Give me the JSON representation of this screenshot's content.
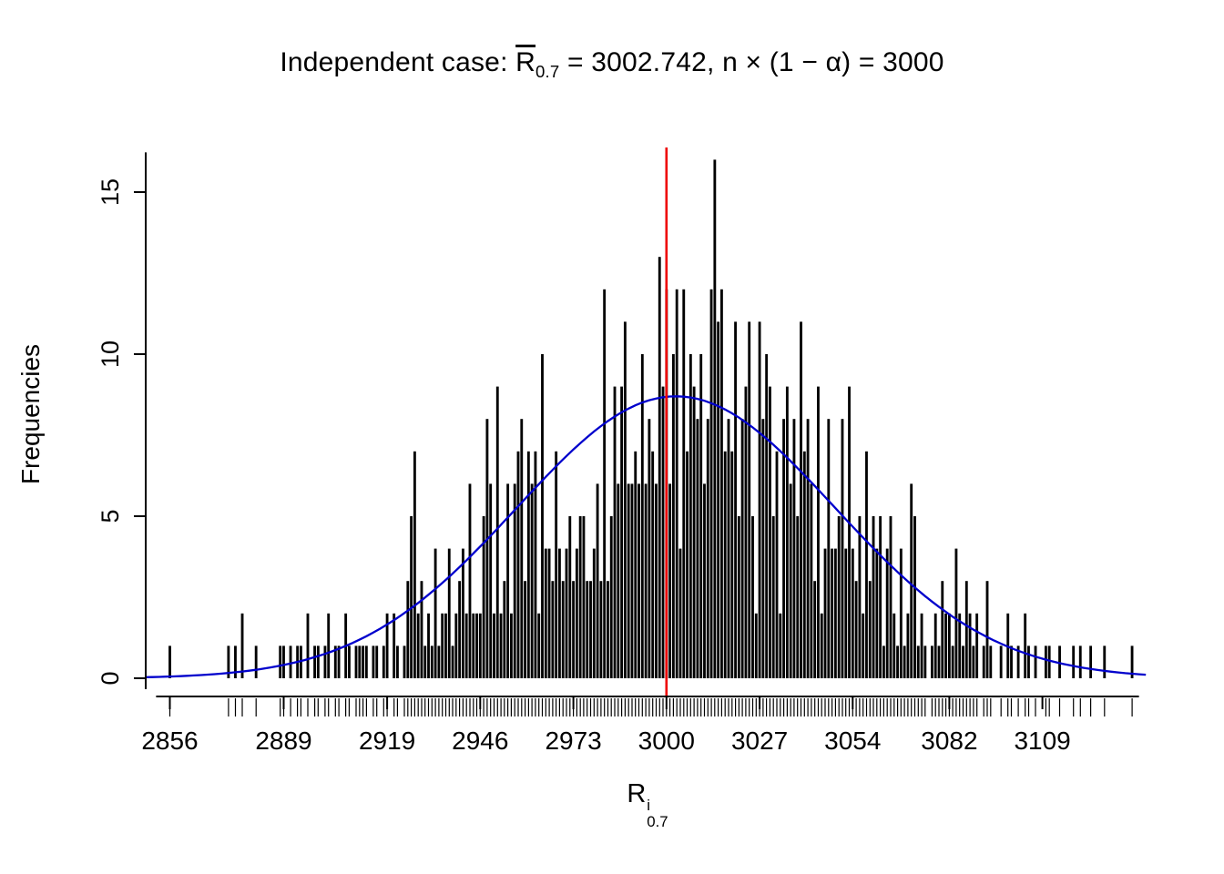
{
  "title": {
    "prefix": "Independent case: ",
    "rbar_base": "R",
    "rbar_sub": "0.7",
    "equals_mean": " = 3002.742,  ",
    "n_expr": "n × (1 − α) = 3000"
  },
  "ylabel": "Frequencies",
  "xlabel": {
    "base": "R",
    "sup": "i",
    "sub": "0.7"
  },
  "chart_data": {
    "type": "bar",
    "subtype": "histogram-with-density-curve",
    "title": "Independent case: R̄0.7 = 3002.742, n × (1 − α) = 3000",
    "xlabel": "R^i_0.7",
    "ylabel": "Frequencies",
    "bin_start": 2856,
    "bin_width": 1,
    "counts": [
      1,
      0,
      0,
      0,
      0,
      0,
      0,
      0,
      0,
      0,
      0,
      0,
      0,
      0,
      0,
      0,
      0,
      1,
      0,
      1,
      0,
      2,
      0,
      0,
      0,
      1,
      0,
      0,
      0,
      0,
      0,
      0,
      1,
      1,
      0,
      1,
      0,
      1,
      1,
      0,
      2,
      0,
      1,
      1,
      0,
      1,
      2,
      0,
      1,
      1,
      0,
      2,
      1,
      0,
      1,
      1,
      1,
      1,
      0,
      1,
      1,
      0,
      1,
      2,
      0,
      2,
      1,
      0,
      1,
      3,
      5,
      7,
      2,
      3,
      1,
      2,
      1,
      4,
      1,
      2,
      2,
      4,
      1,
      2,
      3,
      4,
      2,
      6,
      2,
      2,
      2,
      5,
      8,
      6,
      2,
      9,
      2,
      3,
      6,
      2,
      6,
      7,
      8,
      3,
      7,
      6,
      7,
      2,
      10,
      4,
      4,
      3,
      7,
      4,
      3,
      4,
      5,
      3,
      4,
      5,
      5,
      3,
      3,
      4,
      6,
      3,
      12,
      3,
      5,
      9,
      6,
      9,
      11,
      6,
      6,
      7,
      6,
      10,
      6,
      8,
      7,
      6,
      13,
      9,
      12,
      6,
      10,
      12,
      4,
      12,
      7,
      10,
      9,
      8,
      10,
      6,
      8,
      12,
      16,
      11,
      12,
      7,
      8,
      7,
      11,
      5,
      8,
      9,
      11,
      5,
      2,
      11,
      8,
      10,
      9,
      5,
      7,
      2,
      8,
      9,
      6,
      8,
      5,
      11,
      7,
      8,
      6,
      3,
      9,
      2,
      4,
      8,
      4,
      4,
      5,
      8,
      4,
      9,
      4,
      3,
      5,
      2,
      7,
      3,
      5,
      4,
      5,
      1,
      4,
      5,
      2,
      1,
      4,
      1,
      2,
      6,
      5,
      1,
      2,
      1,
      0,
      1,
      2,
      1,
      3,
      2,
      2,
      1,
      4,
      2,
      1,
      3,
      2,
      1,
      2,
      0,
      1,
      3,
      1,
      0,
      0,
      1,
      0,
      2,
      1,
      0,
      1,
      0,
      2,
      1,
      0,
      1,
      0,
      0,
      1,
      1,
      0,
      0,
      1,
      0,
      0,
      0,
      1,
      0,
      1,
      0,
      0,
      1,
      0,
      0,
      0,
      1,
      0,
      0,
      0,
      0,
      0,
      0,
      0,
      1
    ],
    "x_ticks": [
      2856,
      2889,
      2919,
      2946,
      2973,
      3000,
      3027,
      3054,
      3082,
      3109
    ],
    "y_ticks": [
      0,
      5,
      10,
      15
    ],
    "x_range": [
      2849,
      3140
    ],
    "ylim": [
      0,
      16
    ],
    "grid": false,
    "legend": "none",
    "curve": {
      "type": "normal",
      "mean": 3002.742,
      "sd": 46,
      "peak": 8.7,
      "color": "#0000CC"
    },
    "vline": {
      "x": 3000,
      "color": "#EE0000"
    },
    "bar_color": "#000000",
    "rug": true
  }
}
